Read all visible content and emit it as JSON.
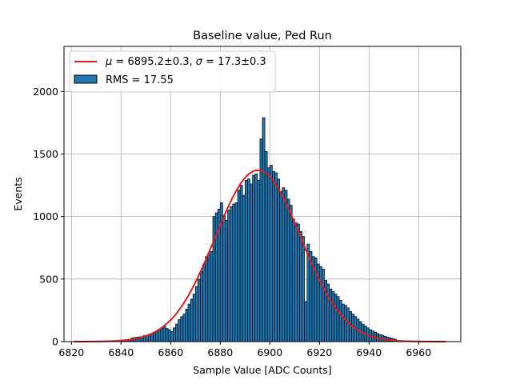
{
  "chart_data": {
    "type": "bar",
    "title": "Baseline value, Ped Run",
    "xlabel": "Sample Value [ADC Counts]",
    "ylabel": "Events",
    "xlim": [
      6817,
      6977
    ],
    "ylim": [
      0,
      2360
    ],
    "grid": true,
    "legend_position": "top-left",
    "xticks": [
      6820,
      6840,
      6860,
      6880,
      6900,
      6920,
      6940,
      6960
    ],
    "yticks": [
      0,
      500,
      1000,
      1500,
      2000
    ],
    "bar_color": "#1f77b4",
    "fit_color": "#e31a1c",
    "histogram": {
      "name": "RMS = 17.55",
      "bin_start": 6841,
      "bin_width": 1,
      "values": [
        10,
        15,
        20,
        28,
        32,
        35,
        38,
        40,
        48,
        50,
        60,
        65,
        75,
        85,
        100,
        110,
        125,
        105,
        95,
        80,
        110,
        140,
        175,
        200,
        220,
        260,
        300,
        340,
        380,
        440,
        500,
        560,
        620,
        680,
        700,
        720,
        1000,
        1030,
        1060,
        1110,
        1010,
        970,
        1050,
        1080,
        1100,
        1110,
        1210,
        1250,
        1170,
        1290,
        1300,
        1260,
        1330,
        1340,
        1290,
        1620,
        1790,
        1520,
        1390,
        1410,
        1360,
        1350,
        1300,
        1200,
        1230,
        1210,
        1140,
        1090,
        980,
        950,
        940,
        880,
        840,
        320,
        780,
        720,
        680,
        670,
        620,
        600,
        580,
        490,
        460,
        420,
        400,
        380,
        360,
        330,
        300,
        290,
        270,
        240,
        220,
        200,
        180,
        160,
        140,
        125,
        110,
        95,
        85,
        75,
        65,
        55,
        50,
        42,
        35,
        30,
        25,
        20
      ]
    },
    "fit": {
      "name": "μ = 6895.2±0.3, σ = 17.3±0.3",
      "mu": 6895.2,
      "sigma": 17.3,
      "amplitude": 1370,
      "x_range": [
        6821,
        6971
      ]
    },
    "legend": {
      "fit_prefix": "μ",
      "fit_mid": " = 6895.2±0.3, ",
      "fit_sigma": "σ",
      "fit_suffix": " = 17.3±0.3",
      "hist_label": "RMS = 17.55"
    }
  }
}
